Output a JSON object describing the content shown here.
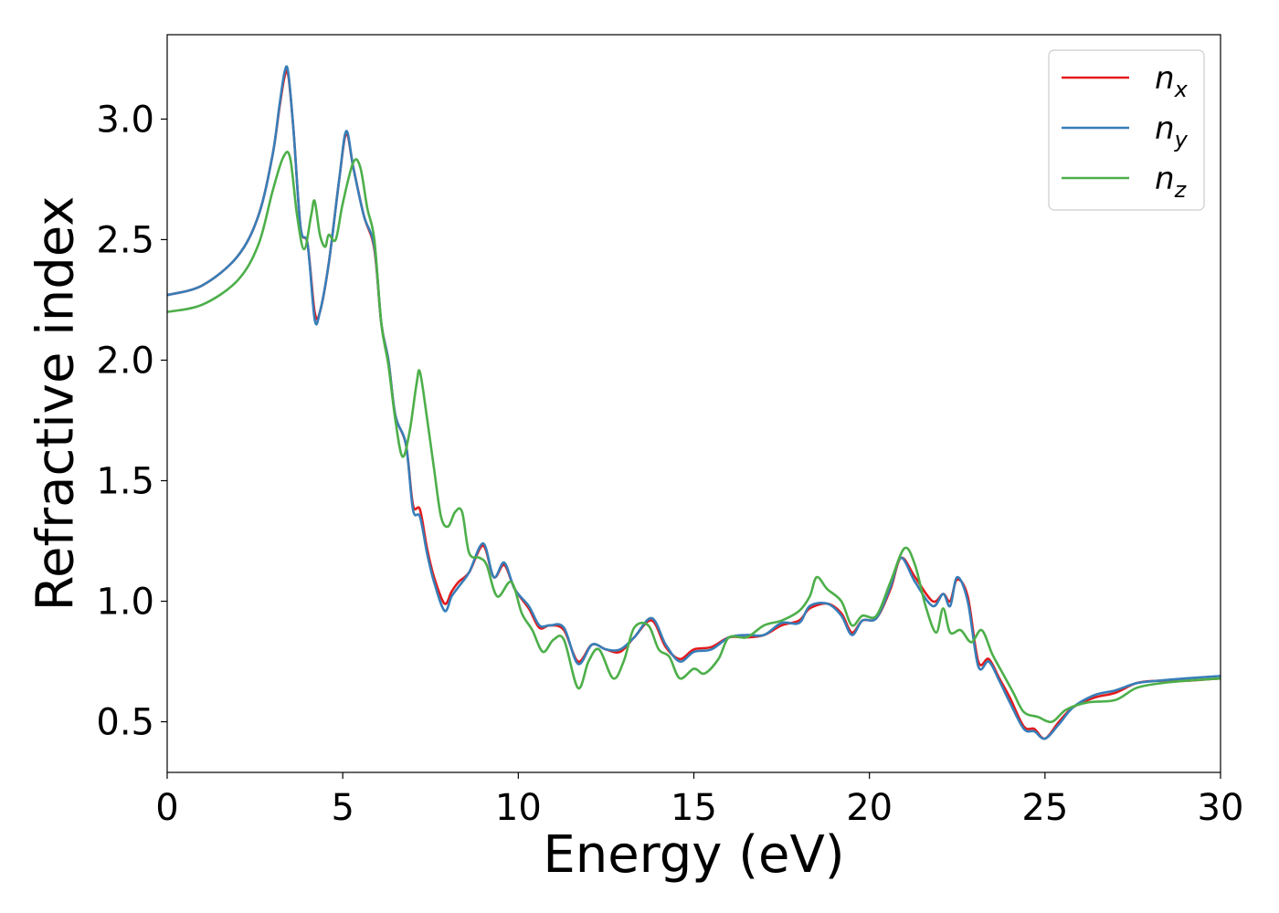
{
  "chart_data": {
    "type": "line",
    "xlabel": "Energy (eV)",
    "ylabel": "Refractive index",
    "xlim": [
      0,
      30
    ],
    "ylim": [
      0.29,
      3.35
    ],
    "xticks": [
      "0",
      "5",
      "10",
      "15",
      "20",
      "25",
      "30"
    ],
    "yticks": [
      "0.5",
      "1.0",
      "1.5",
      "2.0",
      "2.5",
      "3.0"
    ],
    "grid": false,
    "legend_position": "top-right",
    "series": [
      {
        "name": "n_x",
        "legend_base": "n",
        "legend_sub": "x",
        "color": "#e41a1c",
        "points": [
          [
            0,
            2.27
          ],
          [
            1,
            2.31
          ],
          [
            2,
            2.43
          ],
          [
            2.6,
            2.6
          ],
          [
            3,
            2.85
          ],
          [
            3.2,
            3.05
          ],
          [
            3.35,
            3.18
          ],
          [
            3.45,
            3.18
          ],
          [
            3.6,
            2.95
          ],
          [
            3.8,
            2.55
          ],
          [
            4,
            2.48
          ],
          [
            4.2,
            2.2
          ],
          [
            4.35,
            2.2
          ],
          [
            4.6,
            2.4
          ],
          [
            4.9,
            2.75
          ],
          [
            5.1,
            2.94
          ],
          [
            5.3,
            2.8
          ],
          [
            5.6,
            2.6
          ],
          [
            5.9,
            2.46
          ],
          [
            6.1,
            2.15
          ],
          [
            6.3,
            2.0
          ],
          [
            6.5,
            1.77
          ],
          [
            6.8,
            1.65
          ],
          [
            7,
            1.4
          ],
          [
            7.2,
            1.38
          ],
          [
            7.4,
            1.22
          ],
          [
            7.6,
            1.1
          ],
          [
            7.9,
            0.99
          ],
          [
            8.1,
            1.04
          ],
          [
            8.3,
            1.08
          ],
          [
            8.6,
            1.12
          ],
          [
            9,
            1.23
          ],
          [
            9.3,
            1.1
          ],
          [
            9.6,
            1.15
          ],
          [
            9.9,
            1.05
          ],
          [
            10.3,
            0.97
          ],
          [
            10.6,
            0.89
          ],
          [
            10.9,
            0.9
          ],
          [
            11.3,
            0.88
          ],
          [
            11.7,
            0.75
          ],
          [
            12.1,
            0.82
          ],
          [
            12.5,
            0.8
          ],
          [
            12.9,
            0.79
          ],
          [
            13.3,
            0.85
          ],
          [
            13.8,
            0.92
          ],
          [
            14.2,
            0.81
          ],
          [
            14.6,
            0.76
          ],
          [
            15,
            0.8
          ],
          [
            15.5,
            0.81
          ],
          [
            16,
            0.85
          ],
          [
            16.5,
            0.85
          ],
          [
            17,
            0.86
          ],
          [
            17.5,
            0.9
          ],
          [
            18,
            0.92
          ],
          [
            18.3,
            0.97
          ],
          [
            18.8,
            0.99
          ],
          [
            19.2,
            0.95
          ],
          [
            19.5,
            0.87
          ],
          [
            19.8,
            0.92
          ],
          [
            20.2,
            0.93
          ],
          [
            20.6,
            1.05
          ],
          [
            20.9,
            1.18
          ],
          [
            21.3,
            1.1
          ],
          [
            21.8,
            1.0
          ],
          [
            22.1,
            1.03
          ],
          [
            22.3,
            1.0
          ],
          [
            22.5,
            1.09
          ],
          [
            22.8,
            1.02
          ],
          [
            23.1,
            0.75
          ],
          [
            23.4,
            0.76
          ],
          [
            23.7,
            0.68
          ],
          [
            24,
            0.6
          ],
          [
            24.4,
            0.48
          ],
          [
            24.7,
            0.47
          ],
          [
            25,
            0.43
          ],
          [
            25.4,
            0.5
          ],
          [
            25.8,
            0.56
          ],
          [
            26.4,
            0.6
          ],
          [
            27,
            0.62
          ],
          [
            27.6,
            0.66
          ],
          [
            28.2,
            0.67
          ],
          [
            29,
            0.67
          ],
          [
            30,
            0.68
          ]
        ]
      },
      {
        "name": "n_y",
        "legend_base": "n",
        "legend_sub": "y",
        "color": "#377eb8",
        "points": [
          [
            0,
            2.27
          ],
          [
            1,
            2.31
          ],
          [
            2,
            2.43
          ],
          [
            2.6,
            2.6
          ],
          [
            3,
            2.85
          ],
          [
            3.2,
            3.06
          ],
          [
            3.35,
            3.2
          ],
          [
            3.45,
            3.19
          ],
          [
            3.6,
            2.95
          ],
          [
            3.8,
            2.55
          ],
          [
            4,
            2.48
          ],
          [
            4.2,
            2.17
          ],
          [
            4.35,
            2.2
          ],
          [
            4.6,
            2.4
          ],
          [
            4.9,
            2.75
          ],
          [
            5.1,
            2.95
          ],
          [
            5.3,
            2.8
          ],
          [
            5.6,
            2.6
          ],
          [
            5.9,
            2.47
          ],
          [
            6.1,
            2.15
          ],
          [
            6.3,
            2.0
          ],
          [
            6.5,
            1.77
          ],
          [
            6.8,
            1.65
          ],
          [
            7,
            1.38
          ],
          [
            7.2,
            1.35
          ],
          [
            7.4,
            1.2
          ],
          [
            7.6,
            1.08
          ],
          [
            7.9,
            0.96
          ],
          [
            8.1,
            1.02
          ],
          [
            8.3,
            1.06
          ],
          [
            8.6,
            1.12
          ],
          [
            9,
            1.24
          ],
          [
            9.3,
            1.1
          ],
          [
            9.6,
            1.16
          ],
          [
            9.9,
            1.05
          ],
          [
            10.3,
            0.98
          ],
          [
            10.6,
            0.9
          ],
          [
            10.9,
            0.9
          ],
          [
            11.3,
            0.89
          ],
          [
            11.7,
            0.74
          ],
          [
            12.1,
            0.82
          ],
          [
            12.5,
            0.8
          ],
          [
            12.9,
            0.8
          ],
          [
            13.3,
            0.85
          ],
          [
            13.8,
            0.93
          ],
          [
            14.2,
            0.82
          ],
          [
            14.6,
            0.75
          ],
          [
            15,
            0.79
          ],
          [
            15.5,
            0.8
          ],
          [
            16,
            0.85
          ],
          [
            16.5,
            0.86
          ],
          [
            17,
            0.86
          ],
          [
            17.5,
            0.91
          ],
          [
            18,
            0.91
          ],
          [
            18.3,
            0.98
          ],
          [
            18.8,
            0.99
          ],
          [
            19.2,
            0.94
          ],
          [
            19.5,
            0.86
          ],
          [
            19.8,
            0.92
          ],
          [
            20.2,
            0.93
          ],
          [
            20.6,
            1.06
          ],
          [
            20.9,
            1.18
          ],
          [
            21.3,
            1.08
          ],
          [
            21.8,
            0.98
          ],
          [
            22.1,
            1.03
          ],
          [
            22.3,
            0.98
          ],
          [
            22.5,
            1.1
          ],
          [
            22.8,
            1.0
          ],
          [
            23.1,
            0.73
          ],
          [
            23.4,
            0.75
          ],
          [
            23.7,
            0.67
          ],
          [
            24,
            0.58
          ],
          [
            24.4,
            0.47
          ],
          [
            24.7,
            0.46
          ],
          [
            25,
            0.43
          ],
          [
            25.4,
            0.49
          ],
          [
            25.8,
            0.56
          ],
          [
            26.4,
            0.61
          ],
          [
            27,
            0.63
          ],
          [
            27.6,
            0.66
          ],
          [
            28.2,
            0.67
          ],
          [
            29,
            0.68
          ],
          [
            30,
            0.69
          ]
        ]
      },
      {
        "name": "n_z",
        "legend_base": "n",
        "legend_sub": "z",
        "color": "#4daf4a",
        "points": [
          [
            0,
            2.2
          ],
          [
            1,
            2.23
          ],
          [
            2,
            2.33
          ],
          [
            2.6,
            2.48
          ],
          [
            3,
            2.7
          ],
          [
            3.3,
            2.84
          ],
          [
            3.5,
            2.84
          ],
          [
            3.7,
            2.6
          ],
          [
            3.9,
            2.46
          ],
          [
            4.1,
            2.6
          ],
          [
            4.2,
            2.66
          ],
          [
            4.35,
            2.52
          ],
          [
            4.5,
            2.47
          ],
          [
            4.6,
            2.52
          ],
          [
            4.8,
            2.5
          ],
          [
            5,
            2.65
          ],
          [
            5.3,
            2.82
          ],
          [
            5.5,
            2.8
          ],
          [
            5.7,
            2.63
          ],
          [
            5.9,
            2.5
          ],
          [
            6.1,
            2.15
          ],
          [
            6.3,
            1.98
          ],
          [
            6.5,
            1.75
          ],
          [
            6.7,
            1.6
          ],
          [
            6.9,
            1.7
          ],
          [
            7.1,
            1.9
          ],
          [
            7.2,
            1.95
          ],
          [
            7.4,
            1.76
          ],
          [
            7.6,
            1.55
          ],
          [
            7.8,
            1.35
          ],
          [
            8,
            1.31
          ],
          [
            8.2,
            1.37
          ],
          [
            8.4,
            1.37
          ],
          [
            8.6,
            1.2
          ],
          [
            8.9,
            1.18
          ],
          [
            9.1,
            1.15
          ],
          [
            9.4,
            1.02
          ],
          [
            9.8,
            1.08
          ],
          [
            10.1,
            0.95
          ],
          [
            10.4,
            0.88
          ],
          [
            10.7,
            0.79
          ],
          [
            11,
            0.84
          ],
          [
            11.3,
            0.84
          ],
          [
            11.7,
            0.64
          ],
          [
            12,
            0.75
          ],
          [
            12.3,
            0.8
          ],
          [
            12.7,
            0.68
          ],
          [
            13,
            0.75
          ],
          [
            13.3,
            0.89
          ],
          [
            13.7,
            0.9
          ],
          [
            14,
            0.8
          ],
          [
            14.3,
            0.77
          ],
          [
            14.6,
            0.68
          ],
          [
            15,
            0.72
          ],
          [
            15.3,
            0.7
          ],
          [
            15.7,
            0.76
          ],
          [
            16,
            0.85
          ],
          [
            16.5,
            0.85
          ],
          [
            17,
            0.9
          ],
          [
            17.5,
            0.92
          ],
          [
            18,
            0.96
          ],
          [
            18.3,
            1.02
          ],
          [
            18.5,
            1.1
          ],
          [
            18.8,
            1.05
          ],
          [
            19.2,
            1.0
          ],
          [
            19.5,
            0.9
          ],
          [
            19.8,
            0.94
          ],
          [
            20.2,
            0.94
          ],
          [
            20.6,
            1.08
          ],
          [
            21,
            1.22
          ],
          [
            21.3,
            1.15
          ],
          [
            21.6,
            0.98
          ],
          [
            21.9,
            0.87
          ],
          [
            22.1,
            0.97
          ],
          [
            22.3,
            0.87
          ],
          [
            22.6,
            0.88
          ],
          [
            22.9,
            0.83
          ],
          [
            23.2,
            0.88
          ],
          [
            23.5,
            0.78
          ],
          [
            23.8,
            0.7
          ],
          [
            24.1,
            0.62
          ],
          [
            24.4,
            0.54
          ],
          [
            24.8,
            0.52
          ],
          [
            25.2,
            0.5
          ],
          [
            25.6,
            0.55
          ],
          [
            26.2,
            0.58
          ],
          [
            27,
            0.59
          ],
          [
            27.6,
            0.64
          ],
          [
            28.3,
            0.66
          ],
          [
            29,
            0.67
          ],
          [
            30,
            0.68
          ]
        ]
      }
    ]
  }
}
